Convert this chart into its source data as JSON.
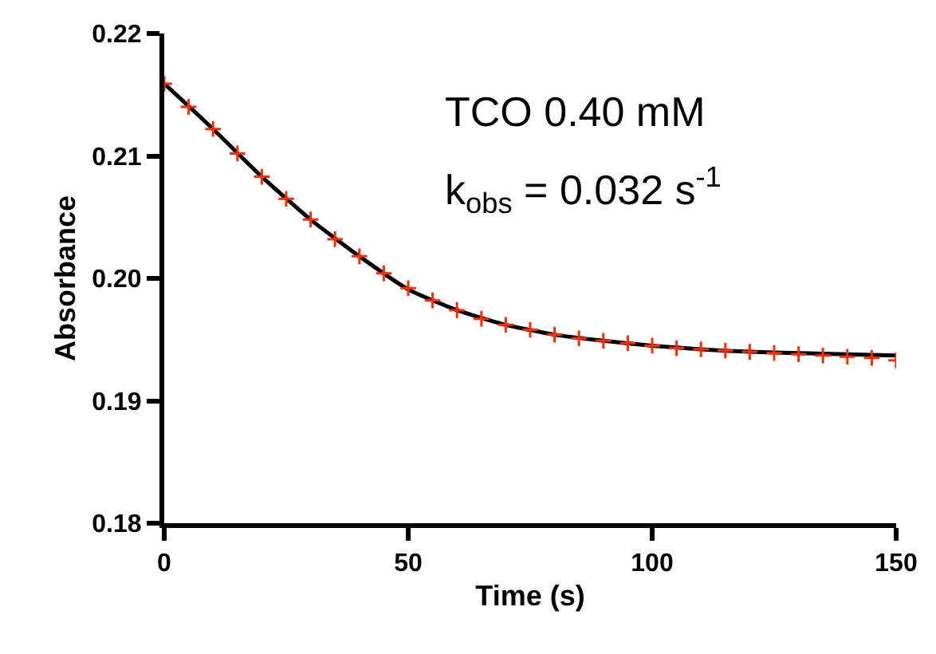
{
  "chart_data": {
    "type": "line",
    "xlabel": "Time (s)",
    "ylabel": "Absorbance",
    "xlim": [
      0,
      150
    ],
    "xticks": [
      0,
      50,
      100,
      150
    ],
    "ylim": [
      0.18,
      0.22
    ],
    "yticks": [
      0.18,
      0.19,
      {
        "value": 0.2,
        "label": "0.20"
      },
      0.21,
      0.22
    ],
    "annotations": [
      "TCO 0.40 mM",
      "k$_{obs}$ = 0.032 s$^{-1}$"
    ],
    "series": [
      {
        "type": "line",
        "color": "#000000",
        "marker": "none",
        "line_style": "solid",
        "x": [
          0,
          10,
          20,
          30,
          40,
          50,
          60,
          70,
          80,
          90,
          100,
          110,
          120,
          130,
          140,
          150
        ],
        "values": [
          0.2159,
          0.2122,
          0.2083,
          0.2048,
          0.2018,
          0.1991,
          0.1974,
          0.1962,
          0.1954,
          0.1949,
          0.1945,
          0.1942,
          0.194,
          0.1939,
          0.1938,
          0.1937
        ]
      },
      {
        "type": "scatter",
        "color": "#ff2a00",
        "marker": "cross",
        "x": [
          0,
          5,
          10,
          15,
          20,
          25,
          30,
          35,
          40,
          45,
          50,
          55,
          60,
          65,
          70,
          75,
          80,
          85,
          90,
          95,
          100,
          105,
          110,
          115,
          120,
          125,
          130,
          135,
          140,
          145,
          150
        ],
        "values": [
          0.2159,
          0.214,
          0.2122,
          0.2102,
          0.2083,
          0.2065,
          0.2048,
          0.2032,
          0.2018,
          0.2004,
          0.1992,
          0.1982,
          0.1974,
          0.1967,
          0.1962,
          0.1958,
          0.1954,
          0.1951,
          0.1949,
          0.1947,
          0.1945,
          0.1943,
          0.1942,
          0.1941,
          0.194,
          0.1939,
          0.1938,
          0.1937,
          0.1936,
          0.1935,
          0.1933
        ]
      }
    ]
  }
}
